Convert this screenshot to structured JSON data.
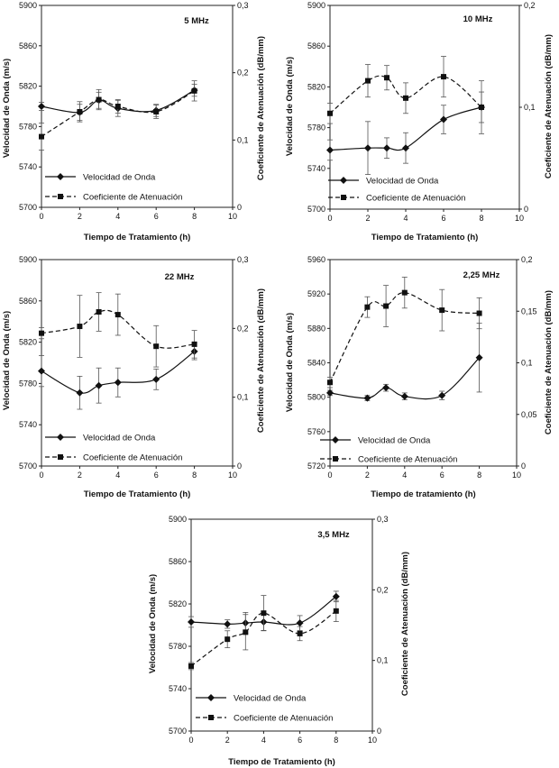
{
  "chart_data": [
    {
      "type": "line",
      "title": "5 MHz",
      "xlabel": "Tiempo de Tratamiento (h)",
      "ylabel_left": "Velocidad de Onda (m/s)",
      "ylabel_right": "Coeficiente de Atenuación (dB/mm)",
      "xlim": [
        0,
        10
      ],
      "x_ticks": [
        "0",
        "2",
        "4",
        "6",
        "8",
        "10"
      ],
      "ylim_left": [
        5700,
        5900
      ],
      "y_ticks_left": [
        "5700",
        "5740",
        "5780",
        "5820",
        "5860",
        "5900"
      ],
      "ylim_right": [
        0,
        0.3
      ],
      "y_ticks_right": [
        "0",
        "0,1",
        "0,2",
        "0,3"
      ],
      "legend_position": "bottom-left",
      "series": [
        {
          "name": "Velocidad de Onda",
          "axis": "left",
          "marker": "diamond",
          "style": "solid",
          "x": [
            0,
            2,
            3,
            4,
            6,
            8
          ],
          "y": [
            5800,
            5794,
            5806,
            5798,
            5796,
            5816
          ],
          "err": [
            4,
            8,
            8,
            8,
            6,
            6
          ]
        },
        {
          "name": "Coeficiente de Atenuación",
          "axis": "right",
          "marker": "square",
          "style": "dashed",
          "x": [
            0,
            2,
            3,
            4,
            6,
            8
          ],
          "y": [
            0.105,
            0.142,
            0.16,
            0.15,
            0.142,
            0.173
          ],
          "err": [
            0.02,
            0.015,
            0.015,
            0.01,
            0.01,
            0.015
          ]
        }
      ]
    },
    {
      "type": "line",
      "title": "10 MHz",
      "xlabel": "Tiempo de Tratamiento (h)",
      "ylabel_left": "Velocidad de Onda (m/s)",
      "ylabel_right": "Coeficiente de Atenuación (dB/mm)",
      "xlim": [
        0,
        10
      ],
      "x_ticks": [
        "0",
        "2",
        "4",
        "6",
        "8",
        "10"
      ],
      "ylim_left": [
        5700,
        5900
      ],
      "y_ticks_left": [
        "5700",
        "5740",
        "5780",
        "5820",
        "5860",
        "5900"
      ],
      "ylim_right": [
        0,
        0.2
      ],
      "y_ticks_right": [
        "0",
        "0,1",
        "0,2"
      ],
      "legend_position": "bottom-left",
      "series": [
        {
          "name": "Velocidad de Onda",
          "axis": "left",
          "marker": "diamond",
          "style": "solid",
          "x": [
            0,
            2,
            3,
            4,
            6,
            8
          ],
          "y": [
            5758,
            5760,
            5760,
            5760,
            5788,
            5800
          ],
          "err": [
            10,
            26,
            10,
            15,
            14,
            26
          ]
        },
        {
          "name": "Coeficiente de Atenuación",
          "axis": "right",
          "marker": "square",
          "style": "dashed",
          "x": [
            0,
            2,
            3,
            4,
            6,
            8
          ],
          "y": [
            0.094,
            0.126,
            0.129,
            0.109,
            0.13,
            0.1
          ],
          "err": [
            0.01,
            0.016,
            0.012,
            0.015,
            0.02,
            0.015
          ]
        }
      ]
    },
    {
      "type": "line",
      "title": "22 MHz",
      "xlabel": "Tiempo de Tratamiento (h)",
      "ylabel_left": "Velocidad de Onda (m/s)",
      "ylabel_right": "Coeficiente de Atenuación (dB/mm)",
      "xlim": [
        0,
        10
      ],
      "x_ticks": [
        "0",
        "2",
        "4",
        "6",
        "8",
        "10"
      ],
      "ylim_left": [
        5700,
        5900
      ],
      "y_ticks_left": [
        "5700",
        "5740",
        "5780",
        "5820",
        "5860",
        "5900"
      ],
      "ylim_right": [
        0,
        0.3
      ],
      "y_ticks_right": [
        "0",
        "0,1",
        "0,2",
        "0,3"
      ],
      "legend_position": "bottom-left",
      "series": [
        {
          "name": "Velocidad de Onda",
          "axis": "left",
          "marker": "diamond",
          "style": "solid",
          "x": [
            0,
            2,
            3,
            4,
            6,
            8
          ],
          "y": [
            5792,
            5771,
            5778,
            5781,
            5784,
            5811
          ],
          "err": [
            15,
            16,
            17,
            14,
            10,
            8
          ]
        },
        {
          "name": "Coeficiente de Atenuación",
          "axis": "right",
          "marker": "square",
          "style": "dashed",
          "x": [
            0,
            2,
            3,
            4,
            6,
            8
          ],
          "y": [
            0.193,
            0.203,
            0.224,
            0.22,
            0.174,
            0.177
          ],
          "err": [
            0.008,
            0.045,
            0.028,
            0.03,
            0.03,
            0.02
          ]
        }
      ]
    },
    {
      "type": "line",
      "title": "2,25 MHz",
      "xlabel": "Tiempo de tratamiento (h)",
      "ylabel_left": "Velocidad de Onda (m/s)",
      "ylabel_right": "Coeficiente de Atenuación (dB/mm)",
      "xlim": [
        0,
        10
      ],
      "x_ticks": [
        "0",
        "2",
        "4",
        "6",
        "8",
        "10"
      ],
      "ylim_left": [
        5720,
        5960
      ],
      "y_ticks_left": [
        "5720",
        "5760",
        "5800",
        "5840",
        "5880",
        "5920",
        "5960"
      ],
      "ylim_right": [
        0,
        0.2
      ],
      "y_ticks_right": [
        "0",
        "0,05",
        "0,1",
        "0,15",
        "0,2"
      ],
      "legend_position": "bottom-left",
      "series": [
        {
          "name": "Velocidad de Onda",
          "axis": "left",
          "marker": "diamond",
          "style": "solid",
          "x": [
            0,
            2,
            3,
            4,
            6,
            8
          ],
          "y": [
            5805,
            5799,
            5811,
            5801,
            5802,
            5846
          ],
          "err": [
            3,
            3,
            4,
            4,
            5,
            40
          ]
        },
        {
          "name": "Coeficiente de Atenuación",
          "axis": "right",
          "marker": "square",
          "style": "dashed",
          "x": [
            0,
            2,
            3,
            4,
            6,
            8
          ],
          "y": [
            0.081,
            0.154,
            0.155,
            0.168,
            0.151,
            0.148
          ],
          "err": [
            0.005,
            0.01,
            0.02,
            0.015,
            0.02,
            0.015
          ]
        }
      ]
    },
    {
      "type": "line",
      "title": "3,5 MHz",
      "xlabel": "Tiempo de Tratamiento (h)",
      "ylabel_left": "Velocidad de Onda (m/s)",
      "ylabel_right": "Coeficiente de Atenuación (dB/mm)",
      "xlim": [
        0,
        10
      ],
      "x_ticks": [
        "0",
        "2",
        "4",
        "6",
        "8",
        "10"
      ],
      "ylim_left": [
        5700,
        5900
      ],
      "y_ticks_left": [
        "5700",
        "5740",
        "5780",
        "5820",
        "5860",
        "5900"
      ],
      "ylim_right": [
        0,
        0.3
      ],
      "y_ticks_right": [
        "0",
        "0,1",
        "0,2",
        "0,3"
      ],
      "legend_position": "bottom-left",
      "series": [
        {
          "name": "Velocidad de Onda",
          "axis": "left",
          "marker": "diamond",
          "style": "solid",
          "x": [
            0,
            2,
            3,
            4,
            6,
            8
          ],
          "y": [
            5803,
            5801,
            5802,
            5803,
            5802,
            5827
          ],
          "err": [
            5,
            4,
            10,
            8,
            7,
            5
          ]
        },
        {
          "name": "Coeficiente de Atenuación",
          "axis": "right",
          "marker": "square",
          "style": "dashed",
          "x": [
            0,
            2,
            3,
            4,
            6,
            8
          ],
          "y": [
            0.092,
            0.13,
            0.14,
            0.167,
            0.138,
            0.17
          ],
          "err": [
            0.005,
            0.012,
            0.025,
            0.025,
            0.01,
            0.015
          ]
        }
      ]
    }
  ]
}
